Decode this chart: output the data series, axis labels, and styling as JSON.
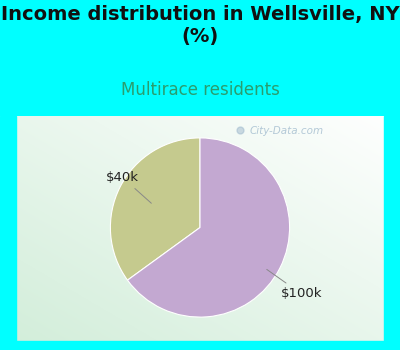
{
  "title": "Income distribution in Wellsville, NY\n(%)",
  "subtitle": "Multirace residents",
  "slices": [
    35,
    65
  ],
  "labels": [
    "$40k",
    "$100k"
  ],
  "colors": [
    "#c5ca8e",
    "#c3a8d1"
  ],
  "startangle": 90,
  "title_fontsize": 14,
  "subtitle_fontsize": 12,
  "subtitle_color": "#2a9d6e",
  "title_color": "#111111",
  "bg_color": "#00ffff",
  "label_color": "#222222",
  "watermark": "City-Data.com",
  "watermark_color": "#9db8cc",
  "pie_bg_left_color": "#c8e8d0",
  "pie_bg_right_color": "#f0f0f0"
}
